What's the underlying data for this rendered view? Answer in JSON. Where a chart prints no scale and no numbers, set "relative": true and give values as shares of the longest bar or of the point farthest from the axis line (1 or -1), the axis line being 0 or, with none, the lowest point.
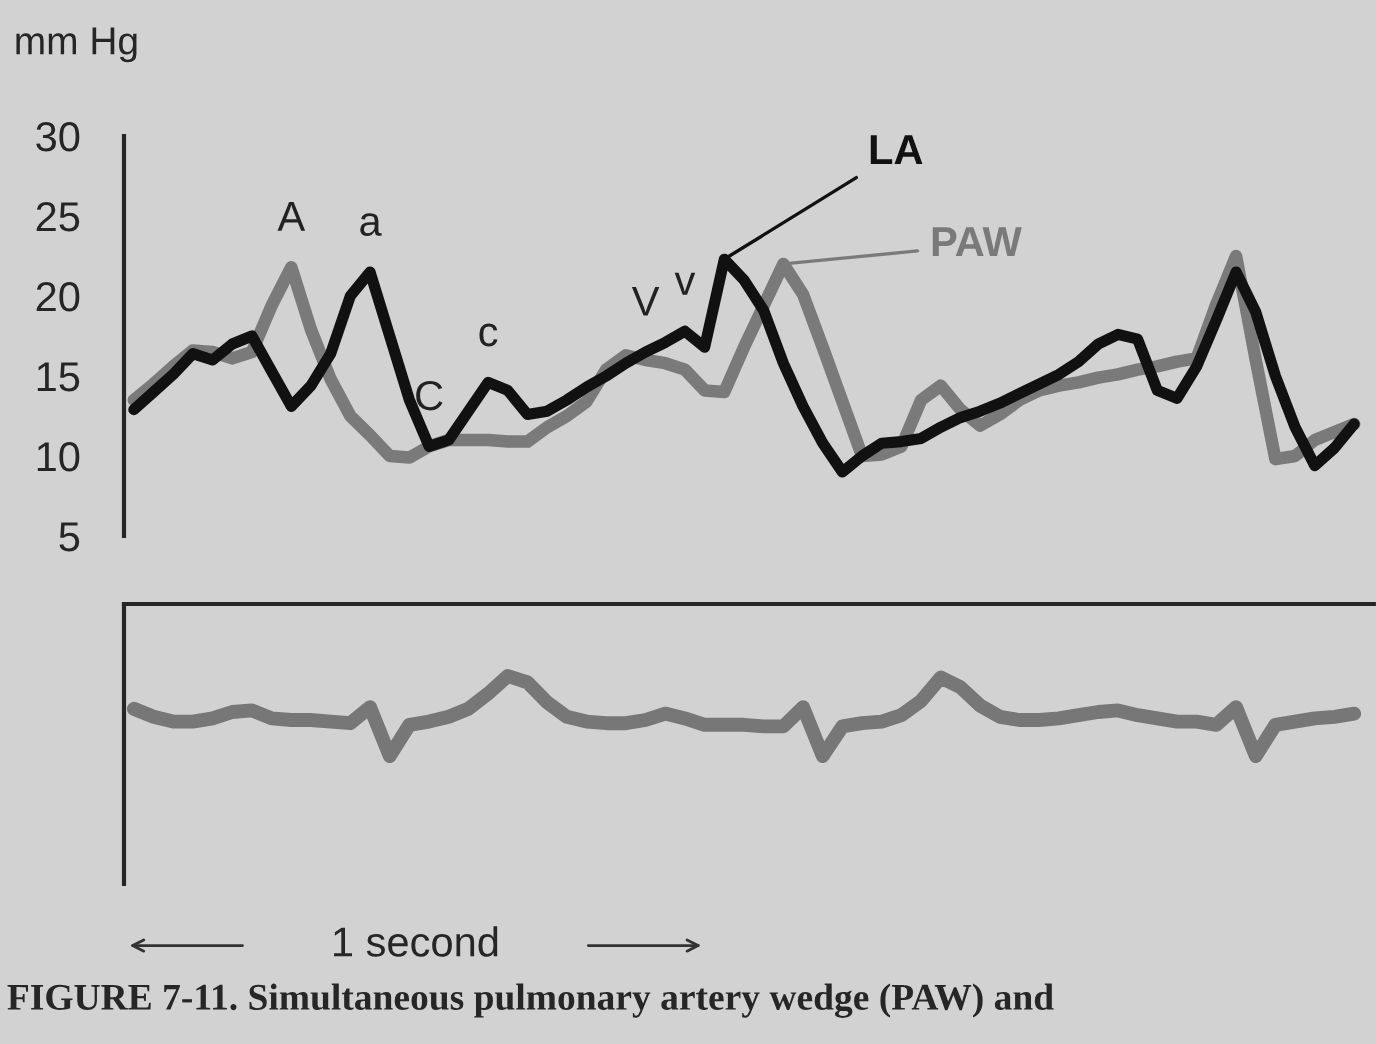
{
  "chart_data": [
    {
      "type": "line",
      "ylabel": "mm Hg",
      "tick_labels": "y",
      "grid": false,
      "legend": "top right",
      "marker": "none",
      "line_style": "solid",
      "categories": [
        null,
        null,
        null,
        null,
        null,
        null,
        null,
        null,
        null,
        null,
        null,
        null,
        null,
        null,
        null,
        null,
        null,
        null,
        null,
        null,
        null,
        null,
        null,
        null,
        null,
        null,
        null,
        null,
        null,
        null,
        null,
        null,
        null,
        null,
        null,
        null,
        null,
        null,
        null,
        null,
        null,
        null,
        null,
        null,
        null,
        null,
        null,
        null,
        null,
        null,
        null,
        null,
        null,
        null,
        null,
        null,
        null,
        null,
        null,
        null,
        null,
        null,
        null
      ],
      "ylim": [
        5,
        30
      ],
      "yticks": [
        5,
        10,
        15,
        20,
        25,
        30
      ],
      "series": [
        {
          "name": "PAW",
          "color": "#7a7a7a",
          "values": [
            13.5,
            14.5,
            15.6,
            16.6,
            16.5,
            16.1,
            16.5,
            19.4,
            21.8,
            17.9,
            14.8,
            12.5,
            11.3,
            10.0,
            9.9,
            10.6,
            11.0,
            11.0,
            11.0,
            10.9,
            10.9,
            11.8,
            12.5,
            13.4,
            15.4,
            16.3,
            16.0,
            15.8,
            15.4,
            14.1,
            14.0,
            16.8,
            19.4,
            22.0,
            20.1,
            16.8,
            13.4,
            10.0,
            10.1,
            10.6,
            13.5,
            14.4,
            12.9,
            11.9,
            12.6,
            13.5,
            14.1,
            14.4,
            14.6,
            14.9,
            15.1,
            15.4,
            15.6,
            15.9,
            16.1,
            19.5,
            22.5,
            16.0,
            9.8,
            10.0,
            11.0,
            11.5,
            12.0
          ]
        },
        {
          "name": "LA",
          "color": "#111111",
          "values": [
            12.9,
            14.0,
            15.1,
            16.4,
            16.0,
            17.0,
            17.5,
            15.3,
            13.1,
            14.4,
            16.4,
            20.0,
            21.5,
            17.5,
            13.5,
            10.6,
            11.0,
            12.8,
            14.6,
            14.1,
            12.6,
            12.8,
            13.5,
            14.3,
            15.0,
            15.8,
            16.5,
            17.1,
            17.8,
            16.8,
            22.3,
            21.0,
            19.1,
            15.8,
            13.1,
            10.8,
            9.0,
            10.0,
            10.8,
            10.9,
            11.1,
            11.8,
            12.4,
            12.8,
            13.3,
            13.9,
            14.5,
            15.1,
            15.9,
            17.0,
            17.6,
            17.3,
            14.1,
            13.6,
            15.6,
            18.5,
            21.5,
            19.0,
            15.0,
            11.8,
            9.4,
            10.5,
            12.0
          ]
        }
      ],
      "annotations": [
        "A",
        "a",
        "C",
        "c",
        "V",
        "v"
      ]
    },
    {
      "type": "line",
      "relative": true,
      "tick_labels": false,
      "grid": false,
      "marker": "none",
      "line_style": "solid",
      "categories": [
        null,
        null,
        null,
        null,
        null,
        null,
        null,
        null,
        null,
        null,
        null,
        null,
        null,
        null,
        null,
        null,
        null,
        null,
        null,
        null,
        null,
        null,
        null,
        null,
        null,
        null,
        null,
        null,
        null,
        null,
        null,
        null,
        null,
        null,
        null,
        null,
        null,
        null,
        null,
        null,
        null,
        null,
        null,
        null,
        null,
        null,
        null,
        null,
        null,
        null,
        null,
        null,
        null,
        null,
        null,
        null,
        null,
        null,
        null,
        null,
        null,
        null,
        null
      ],
      "series": [
        {
          "color": "#777777",
          "values": [
            0.59,
            0.49,
            0.43,
            0.43,
            0.47,
            0.55,
            0.57,
            0.47,
            0.45,
            0.45,
            0.43,
            0.41,
            0.61,
            0,
            0.39,
            0.43,
            0.49,
            0.59,
            0.78,
            1,
            0.92,
            0.67,
            0.49,
            0.43,
            0.41,
            0.41,
            0.45,
            0.53,
            0.47,
            0.39,
            0.39,
            0.39,
            0.37,
            0.37,
            0.61,
            0,
            0.37,
            0.41,
            0.43,
            0.51,
            0.69,
            0.98,
            0.86,
            0.63,
            0.49,
            0.45,
            0.45,
            0.47,
            0.51,
            0.55,
            0.57,
            0.51,
            0.47,
            0.43,
            0.43,
            0.39,
            0.61,
            0,
            0.39,
            0.43,
            0.47,
            0.49,
            0.53
          ]
        }
      ],
      "annotations": [
        "1 second",
        "FIGURE 7-11. Simultaneous pulmonary artery wedge (PAW) and"
      ]
    }
  ]
}
